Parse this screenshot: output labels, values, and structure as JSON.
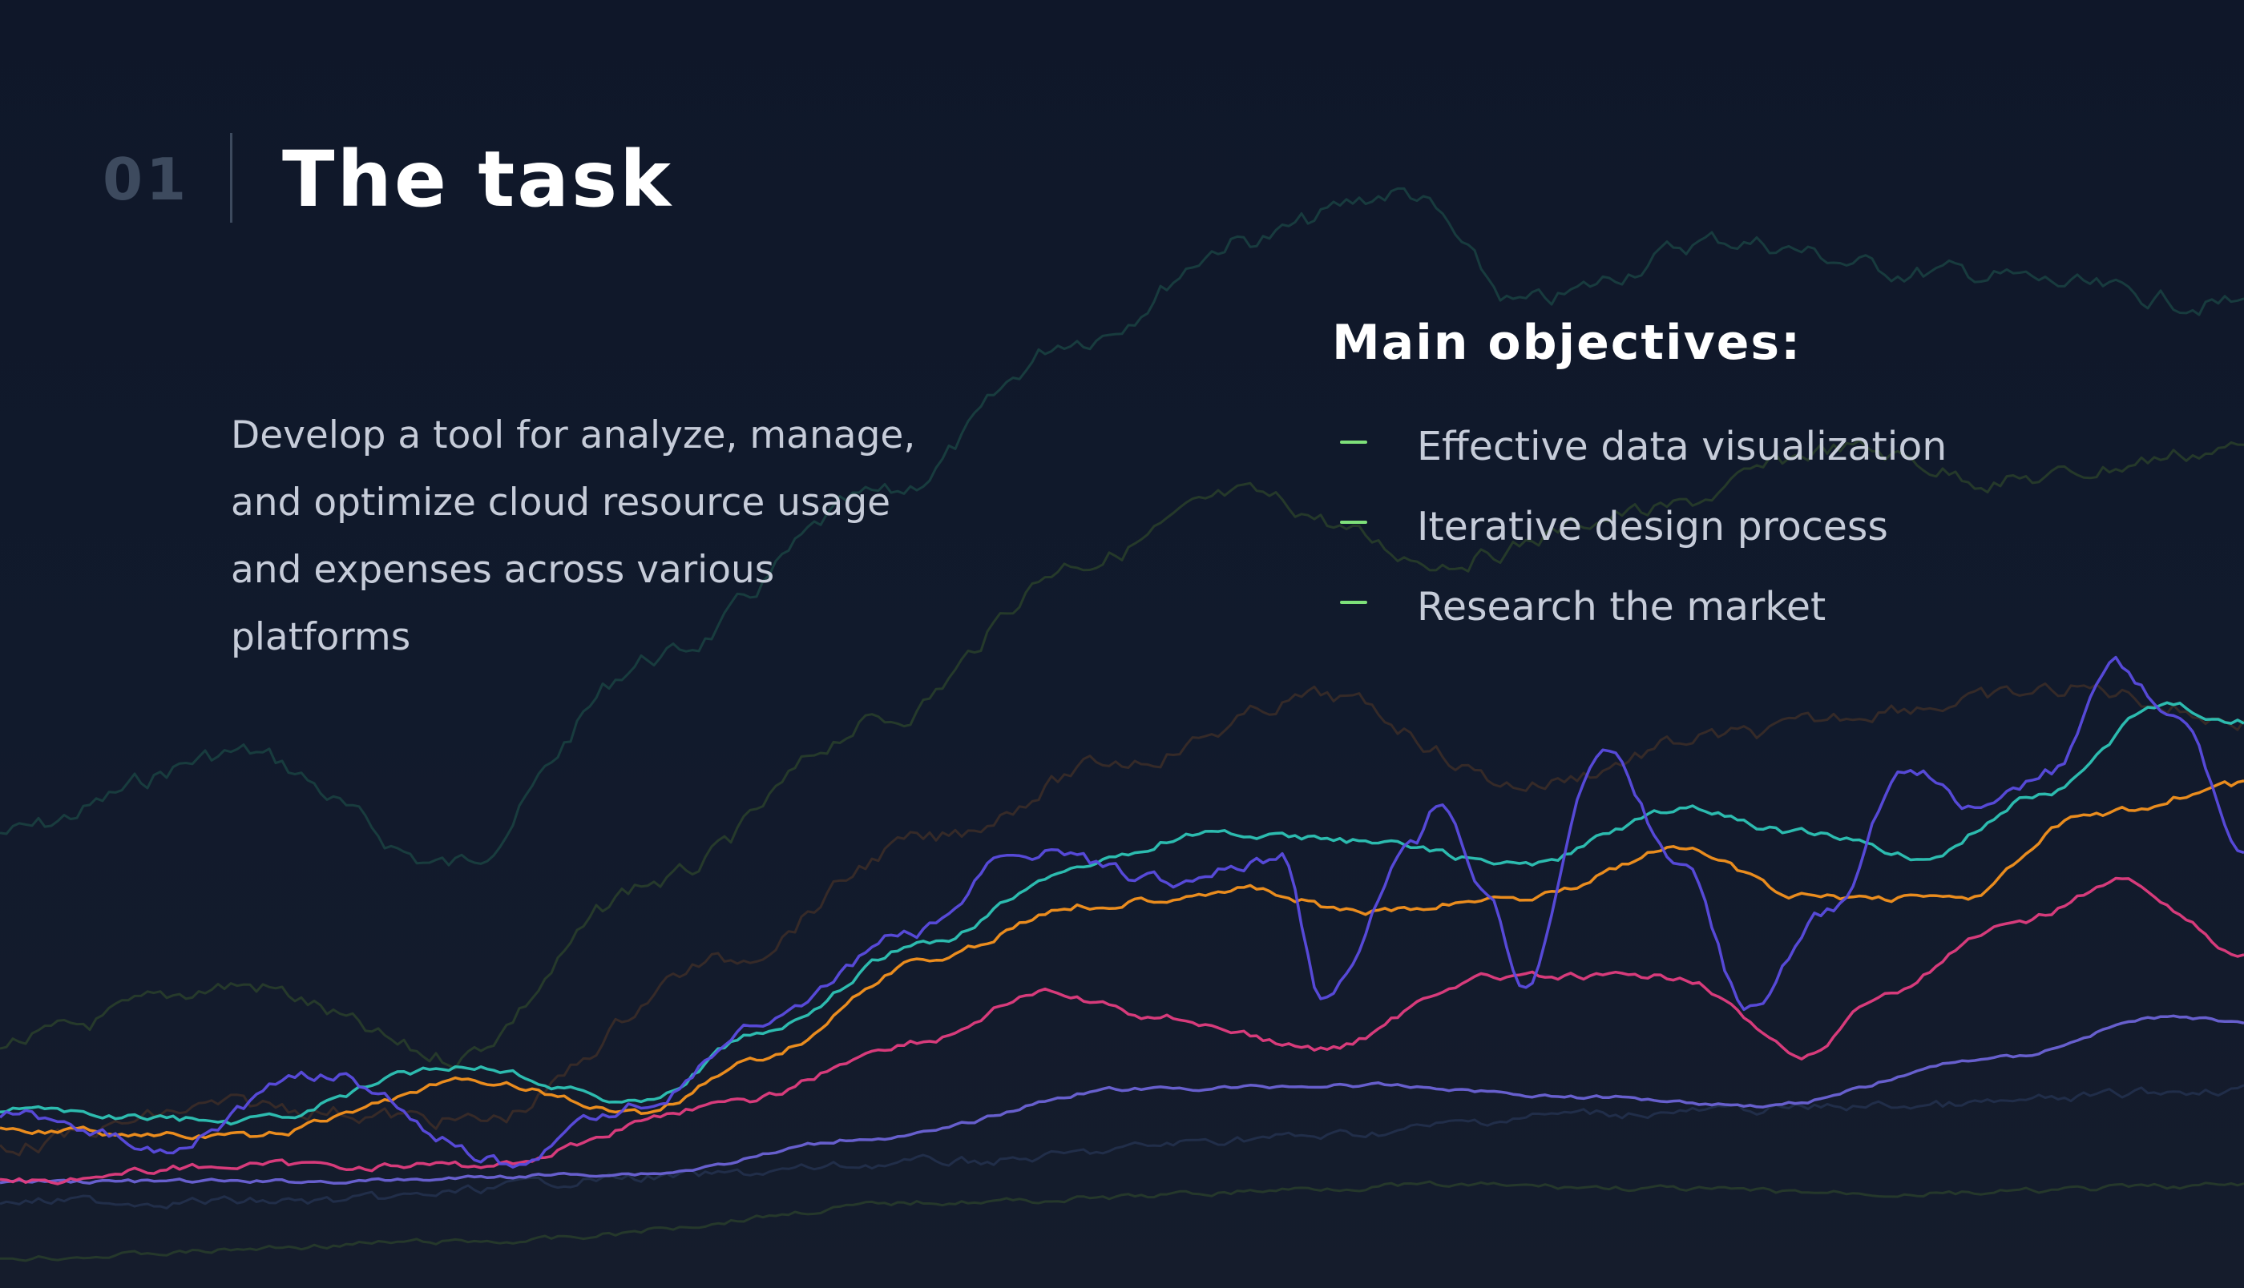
{
  "header": {
    "section_number": "01",
    "title": "The task"
  },
  "description": {
    "text": "Develop a tool for analyze, manage, and optimize cloud resource usage and expenses across various platforms"
  },
  "objectives": {
    "heading": "Main objectives:",
    "items": [
      {
        "label": "Effective data visualization"
      },
      {
        "label": "Iterative design process"
      },
      {
        "label": "Research the market"
      }
    ]
  },
  "colors": {
    "background": "#0f1729",
    "accent_dash": "#7ee07a",
    "series": [
      "#2ec4b6",
      "#f6921e",
      "#5b4ce0",
      "#e23d80",
      "#6c63d6"
    ],
    "faded_series": [
      "#1f5a4e",
      "#3a5a2a",
      "#5a3a24",
      "#2a3a5e"
    ]
  },
  "icons": {
    "list_marker": "dash-icon"
  }
}
